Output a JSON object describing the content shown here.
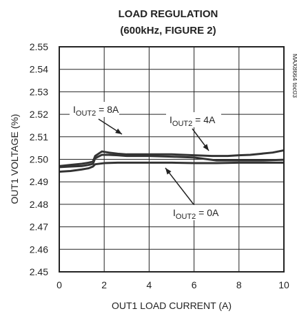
{
  "chart_data": {
    "type": "line",
    "title": "LOAD REGULATION",
    "subtitle": "(600kHz, FIGURE 2)",
    "xlabel": "OUT1 LOAD CURRENT (A)",
    "ylabel": "OUT1 VOLTAGE (%)",
    "xlim": [
      0,
      10
    ],
    "ylim": [
      2.45,
      2.55
    ],
    "xticks": [
      "0",
      "2",
      "4",
      "6",
      "8",
      "10"
    ],
    "yticks": [
      "2.55",
      "2.54",
      "2.53",
      "2.52",
      "2.51",
      "2.50",
      "2.49",
      "2.48",
      "2.47",
      "2.46",
      "2.45"
    ],
    "grid": true,
    "part_id": "MAX8664 toc03",
    "series": [
      {
        "name": "IOUT2 = 8A",
        "x": [
          0,
          0.5,
          1.0,
          1.3,
          1.5,
          1.6,
          1.9,
          2.2,
          2.6,
          3.0,
          4.0,
          5.0,
          6.0,
          6.8,
          7.5,
          8.0,
          8.5,
          9.0,
          9.5,
          10.0
        ],
        "y": [
          2.497,
          2.4975,
          2.498,
          2.4985,
          2.499,
          2.5015,
          2.5035,
          2.503,
          2.5025,
          2.5022,
          2.5022,
          2.5022,
          2.5018,
          2.5015,
          2.5015,
          2.5018,
          2.502,
          2.5025,
          2.503,
          2.504
        ]
      },
      {
        "name": "IOUT2 = 4A",
        "x": [
          0,
          0.5,
          1.0,
          1.3,
          1.5,
          1.6,
          1.9,
          2.2,
          2.6,
          3.0,
          4.0,
          5.0,
          6.0,
          7.0,
          8.0,
          9.0,
          10.0
        ],
        "y": [
          2.4965,
          2.4968,
          2.497,
          2.4975,
          2.498,
          2.5005,
          2.502,
          2.502,
          2.5018,
          2.5015,
          2.5015,
          2.5012,
          2.5008,
          2.4995,
          2.4995,
          2.4995,
          2.4998
        ]
      },
      {
        "name": "IOUT2 = 0A",
        "x": [
          0,
          0.5,
          1.0,
          1.3,
          1.5,
          1.6,
          2.0,
          2.6,
          3.0,
          4.0,
          5.0,
          6.0,
          7.0,
          8.0,
          9.0,
          10.0
        ],
        "y": [
          2.4945,
          2.4948,
          2.4955,
          2.496,
          2.4968,
          2.4978,
          2.4983,
          2.4985,
          2.4985,
          2.4985,
          2.4985,
          2.4983,
          2.4983,
          2.4985,
          2.4985,
          2.4985
        ]
      }
    ],
    "annotations": [
      {
        "main": "I",
        "sub": "OUT2",
        "rest": " = 8A"
      },
      {
        "main": "I",
        "sub": "OUT2",
        "rest": " = 4A"
      },
      {
        "main": "I",
        "sub": "OUT2",
        "rest": " = 0A"
      }
    ]
  }
}
